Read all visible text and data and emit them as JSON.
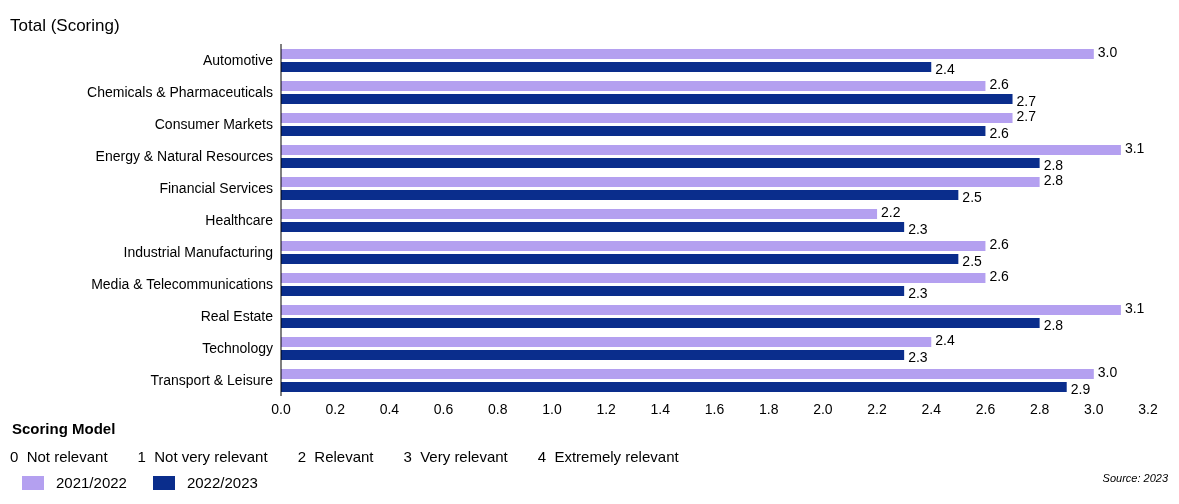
{
  "chart_data": {
    "type": "bar",
    "orientation": "horizontal",
    "title": "Total (Scoring)",
    "categories": [
      "Automotive",
      "Chemicals & Pharmaceuticals",
      "Consumer Markets",
      "Energy & Natural Resources",
      "Financial Services",
      "Healthcare",
      "Industrial Manufacturing",
      "Media & Telecommunications",
      "Real Estate",
      "Technology",
      "Transport & Leisure"
    ],
    "series": [
      {
        "name": "2021/2022",
        "color": "#b4a0f0",
        "values": [
          3.0,
          2.6,
          2.7,
          3.1,
          2.8,
          2.2,
          2.6,
          2.6,
          3.1,
          2.4,
          3.0
        ],
        "value_labels": [
          "3.0",
          "2.6",
          "2.7",
          "3.1",
          "2.8",
          "2.2",
          "2.6",
          "2.6",
          "3.1",
          "2.4",
          "3.0"
        ]
      },
      {
        "name": "2022/2023",
        "color": "#0a2d8c",
        "values": [
          2.4,
          2.7,
          2.6,
          2.8,
          2.5,
          2.3,
          2.5,
          2.3,
          2.8,
          2.3,
          2.9
        ],
        "value_labels": [
          "2.4",
          "2.7",
          "2.6",
          "2.8",
          "2.5",
          "2.3",
          "2.5",
          "2.3",
          "2.8",
          "2.3",
          "2.9"
        ]
      }
    ],
    "xlim": [
      0,
      3.2
    ],
    "xticks": [
      {
        "value": 0,
        "label": "0.0"
      },
      {
        "value": 0.2,
        "label": "0.2"
      },
      {
        "value": 0.4,
        "label": "0.4"
      },
      {
        "value": 0.6,
        "label": "0.6"
      },
      {
        "value": 0.8,
        "label": "0.8"
      },
      {
        "value": 1,
        "label": "1.0"
      },
      {
        "value": 1.2,
        "label": "1.2"
      },
      {
        "value": 1.4,
        "label": "1.4"
      },
      {
        "value": 1.6,
        "label": "1.6"
      },
      {
        "value": 1.8,
        "label": "1.8"
      },
      {
        "value": 2,
        "label": "2.0"
      },
      {
        "value": 2.2,
        "label": "2.2"
      },
      {
        "value": 2.4,
        "label": "2.4"
      },
      {
        "value": 2.6,
        "label": "2.6"
      },
      {
        "value": 2.8,
        "label": "2.8"
      },
      {
        "value": 3,
        "label": "3.0"
      },
      {
        "value": 3.2,
        "label": "3.2"
      }
    ],
    "grid": false,
    "legend": "bottom left",
    "annotations": [
      "Scoring Model",
      "0  Not relevant",
      "1  Not very relevant",
      "2  Relevant",
      "3  Very relevant",
      "4  Extremely relevant",
      "Source: 2023"
    ]
  }
}
